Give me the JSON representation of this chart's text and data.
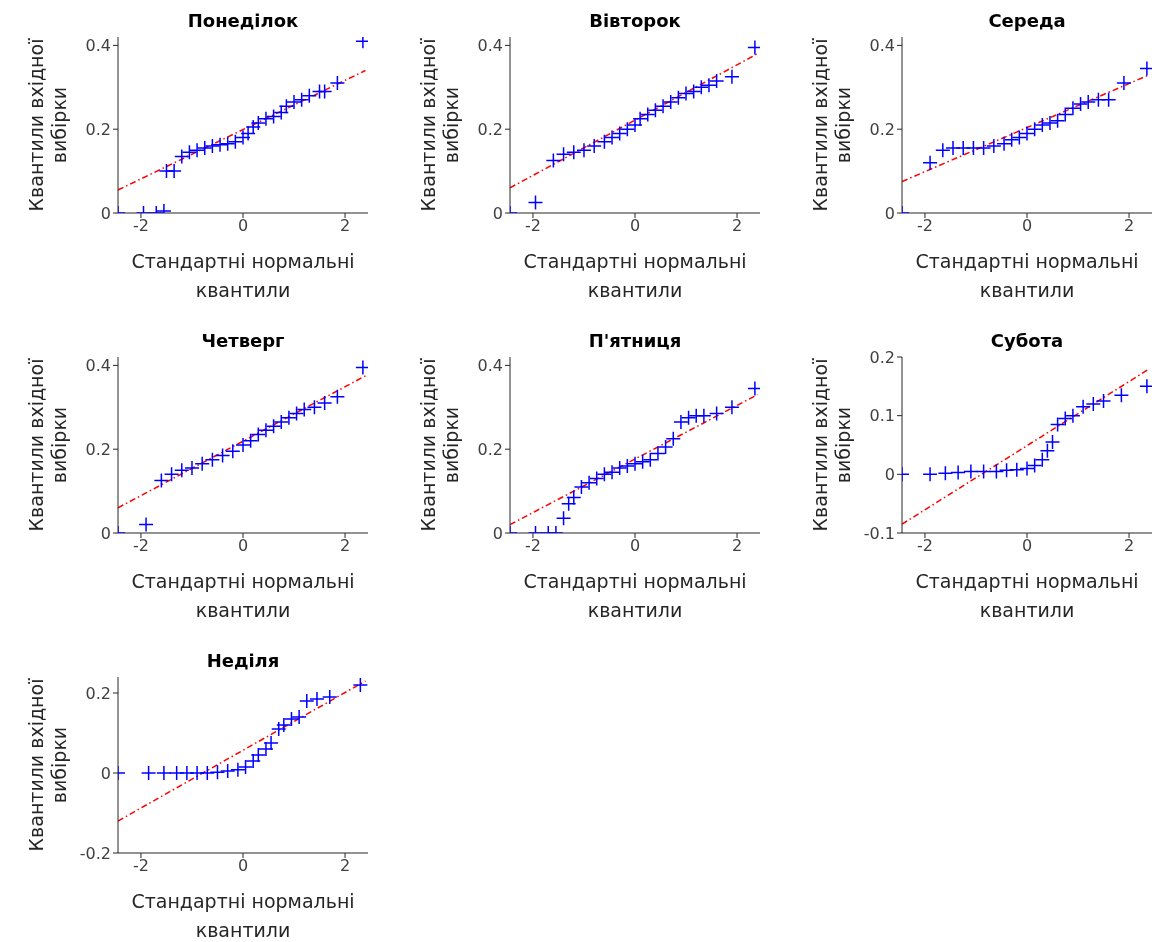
{
  "chart_data": [
    {
      "type": "scatter",
      "title": "Понеділок",
      "xlabel": "Стандартні нормальні квантили",
      "ylabel": "Квантили вхідної вибірки",
      "xlim": [
        -2.45,
        2.45
      ],
      "ylim": [
        0,
        0.42
      ],
      "xticks": [
        -2,
        0,
        2
      ],
      "yticks": [
        0,
        0.2,
        0.4
      ],
      "grid": false,
      "legend": false,
      "series": [
        {
          "type": "scatter",
          "color": "#0000ff",
          "marker": "cross",
          "x": [
            -2.45,
            -1.95,
            -1.7,
            -1.55,
            -1.5,
            -1.35,
            -1.2,
            -1.05,
            -0.9,
            -0.75,
            -0.6,
            -0.45,
            -0.3,
            -0.15,
            0,
            0.1,
            0.2,
            0.3,
            0.45,
            0.6,
            0.75,
            0.85,
            1.0,
            1.15,
            1.3,
            1.5,
            1.6,
            1.85,
            2.35
          ],
          "values": [
            0,
            0,
            0,
            0.005,
            0.1,
            0.1,
            0.135,
            0.145,
            0.15,
            0.155,
            0.16,
            0.163,
            0.165,
            0.17,
            0.18,
            0.19,
            0.205,
            0.215,
            0.225,
            0.23,
            0.24,
            0.255,
            0.265,
            0.27,
            0.28,
            0.29,
            0.29,
            0.31,
            0.41
          ]
        },
        {
          "type": "line",
          "color": "#ff0000",
          "line_style": "dashed",
          "x": [
            -2.45,
            2.4
          ],
          "values": [
            0.055,
            0.34
          ]
        }
      ]
    },
    {
      "type": "scatter",
      "title": "Вівторок",
      "xlabel": "Стандартні нормальні квантили",
      "ylabel": "Квантили вхідної вибірки",
      "xlim": [
        -2.45,
        2.45
      ],
      "ylim": [
        0,
        0.42
      ],
      "xticks": [
        -2,
        0,
        2
      ],
      "yticks": [
        0,
        0.2,
        0.4
      ],
      "grid": false,
      "legend": false,
      "series": [
        {
          "type": "scatter",
          "color": "#0000ff",
          "marker": "cross",
          "x": [
            -2.45,
            -1.95,
            -1.6,
            -1.4,
            -1.2,
            -1.0,
            -0.8,
            -0.6,
            -0.45,
            -0.3,
            -0.15,
            0,
            0.1,
            0.25,
            0.4,
            0.55,
            0.7,
            0.85,
            1.0,
            1.15,
            1.3,
            1.45,
            1.6,
            1.9,
            2.35
          ],
          "values": [
            0,
            0.025,
            0.125,
            0.14,
            0.145,
            0.15,
            0.16,
            0.17,
            0.18,
            0.19,
            0.2,
            0.21,
            0.225,
            0.235,
            0.245,
            0.255,
            0.265,
            0.275,
            0.285,
            0.29,
            0.3,
            0.305,
            0.315,
            0.325,
            0.395
          ]
        },
        {
          "type": "line",
          "color": "#ff0000",
          "line_style": "dashed",
          "x": [
            -2.45,
            2.4
          ],
          "values": [
            0.06,
            0.38
          ]
        }
      ]
    },
    {
      "type": "scatter",
      "title": "Середа",
      "xlabel": "Стандартні нормальні квантили",
      "ylabel": "Квантили вхідної вибірки",
      "xlim": [
        -2.45,
        2.45
      ],
      "ylim": [
        0,
        0.42
      ],
      "xticks": [
        -2,
        0,
        2
      ],
      "yticks": [
        0,
        0.2,
        0.4
      ],
      "grid": false,
      "legend": false,
      "series": [
        {
          "type": "scatter",
          "color": "#0000ff",
          "marker": "cross",
          "x": [
            -2.45,
            -1.9,
            -1.65,
            -1.45,
            -1.25,
            -1.05,
            -0.85,
            -0.65,
            -0.45,
            -0.3,
            -0.15,
            0,
            0.15,
            0.3,
            0.45,
            0.6,
            0.75,
            0.9,
            1.05,
            1.2,
            1.4,
            1.6,
            1.9,
            2.35
          ],
          "values": [
            0,
            0.12,
            0.15,
            0.155,
            0.155,
            0.155,
            0.155,
            0.16,
            0.165,
            0.175,
            0.18,
            0.19,
            0.2,
            0.21,
            0.215,
            0.22,
            0.235,
            0.25,
            0.26,
            0.265,
            0.27,
            0.27,
            0.31,
            0.345
          ]
        },
        {
          "type": "line",
          "color": "#ff0000",
          "line_style": "dashed",
          "x": [
            -2.45,
            2.4
          ],
          "values": [
            0.075,
            0.33
          ]
        }
      ]
    },
    {
      "type": "scatter",
      "title": "Четверг",
      "xlabel": "Стандартні нормальні квантили",
      "ylabel": "Квантили вхідної вибірки",
      "xlim": [
        -2.45,
        2.45
      ],
      "ylim": [
        0,
        0.42
      ],
      "xticks": [
        -2,
        0,
        2
      ],
      "yticks": [
        0,
        0.2,
        0.4
      ],
      "grid": false,
      "legend": false,
      "series": [
        {
          "type": "scatter",
          "color": "#0000ff",
          "marker": "cross",
          "x": [
            -2.45,
            -1.9,
            -1.6,
            -1.4,
            -1.2,
            -1.0,
            -0.8,
            -0.6,
            -0.4,
            -0.2,
            0,
            0.15,
            0.3,
            0.45,
            0.6,
            0.75,
            0.9,
            1.05,
            1.2,
            1.4,
            1.6,
            1.85,
            2.35
          ],
          "values": [
            0,
            0.02,
            0.125,
            0.14,
            0.15,
            0.155,
            0.165,
            0.175,
            0.185,
            0.195,
            0.21,
            0.22,
            0.235,
            0.245,
            0.255,
            0.265,
            0.275,
            0.285,
            0.295,
            0.3,
            0.31,
            0.325,
            0.395
          ]
        },
        {
          "type": "line",
          "color": "#ff0000",
          "line_style": "dashed",
          "x": [
            -2.45,
            2.4
          ],
          "values": [
            0.06,
            0.375
          ]
        }
      ]
    },
    {
      "type": "scatter",
      "title": "П'ятниця",
      "xlabel": "Стандартні нормальні квантили",
      "ylabel": "Квантили вхідної вибірки",
      "xlim": [
        -2.45,
        2.45
      ],
      "ylim": [
        0,
        0.42
      ],
      "xticks": [
        -2,
        0,
        2
      ],
      "yticks": [
        0,
        0.2,
        0.4
      ],
      "grid": false,
      "legend": false,
      "series": [
        {
          "type": "scatter",
          "color": "#0000ff",
          "marker": "cross",
          "x": [
            -2.45,
            -1.95,
            -1.7,
            -1.55,
            -1.4,
            -1.3,
            -1.2,
            -1.05,
            -0.9,
            -0.75,
            -0.6,
            -0.45,
            -0.3,
            -0.15,
            0,
            0.15,
            0.3,
            0.45,
            0.6,
            0.75,
            0.9,
            1.05,
            1.2,
            1.35,
            1.6,
            1.9,
            2.35
          ],
          "values": [
            0,
            0,
            0,
            0,
            0.035,
            0.07,
            0.085,
            0.11,
            0.12,
            0.13,
            0.14,
            0.145,
            0.155,
            0.16,
            0.165,
            0.17,
            0.175,
            0.19,
            0.205,
            0.225,
            0.265,
            0.275,
            0.28,
            0.28,
            0.285,
            0.3,
            0.345
          ]
        },
        {
          "type": "line",
          "color": "#ff0000",
          "line_style": "dashed",
          "x": [
            -2.45,
            2.4
          ],
          "values": [
            0.02,
            0.33
          ]
        }
      ]
    },
    {
      "type": "scatter",
      "title": "Субота",
      "xlabel": "Стандартні нормальні квантили",
      "ylabel": "Квантили вхідної вибірки",
      "xlim": [
        -2.45,
        2.45
      ],
      "ylim": [
        -0.1,
        0.2
      ],
      "xticks": [
        -2,
        0,
        2
      ],
      "yticks": [
        -0.1,
        0,
        0.1,
        0.2
      ],
      "grid": false,
      "legend": false,
      "series": [
        {
          "type": "scatter",
          "color": "#0000ff",
          "marker": "cross",
          "x": [
            -2.45,
            -1.9,
            -1.6,
            -1.35,
            -1.1,
            -0.85,
            -0.6,
            -0.4,
            -0.2,
            0,
            0.15,
            0.3,
            0.4,
            0.5,
            0.6,
            0.75,
            0.9,
            1.1,
            1.3,
            1.5,
            1.85,
            2.35
          ],
          "values": [
            0,
            0,
            0.002,
            0.003,
            0.005,
            0.005,
            0.005,
            0.007,
            0.008,
            0.01,
            0.015,
            0.025,
            0.04,
            0.055,
            0.085,
            0.095,
            0.1,
            0.115,
            0.12,
            0.125,
            0.135,
            0.15
          ]
        },
        {
          "type": "line",
          "color": "#ff0000",
          "line_style": "dashed",
          "x": [
            -2.45,
            2.4
          ],
          "values": [
            -0.085,
            0.18
          ]
        }
      ]
    },
    {
      "type": "scatter",
      "title": "Неділя",
      "xlabel": "Стандартні нормальні квантили",
      "ylabel": "Квантили вхідної вибірки",
      "xlim": [
        -2.45,
        2.45
      ],
      "ylim": [
        -0.2,
        0.24
      ],
      "xticks": [
        -2,
        0,
        2
      ],
      "yticks": [
        -0.2,
        0,
        0.2
      ],
      "grid": false,
      "legend": false,
      "series": [
        {
          "type": "scatter",
          "color": "#0000ff",
          "marker": "cross",
          "x": [
            -2.45,
            -1.85,
            -1.55,
            -1.3,
            -1.1,
            -0.9,
            -0.7,
            -0.5,
            -0.3,
            -0.1,
            0.05,
            0.2,
            0.3,
            0.45,
            0.55,
            0.7,
            0.8,
            0.95,
            1.1,
            1.25,
            1.45,
            1.7,
            2.3
          ],
          "values": [
            0,
            0,
            0,
            0,
            0,
            0,
            0,
            0.002,
            0.005,
            0.008,
            0.015,
            0.03,
            0.045,
            0.06,
            0.075,
            0.11,
            0.12,
            0.135,
            0.14,
            0.18,
            0.185,
            0.19,
            0.22
          ]
        },
        {
          "type": "line",
          "color": "#ff0000",
          "line_style": "dashed",
          "x": [
            -2.45,
            2.4
          ],
          "values": [
            -0.12,
            0.23
          ]
        }
      ]
    }
  ]
}
